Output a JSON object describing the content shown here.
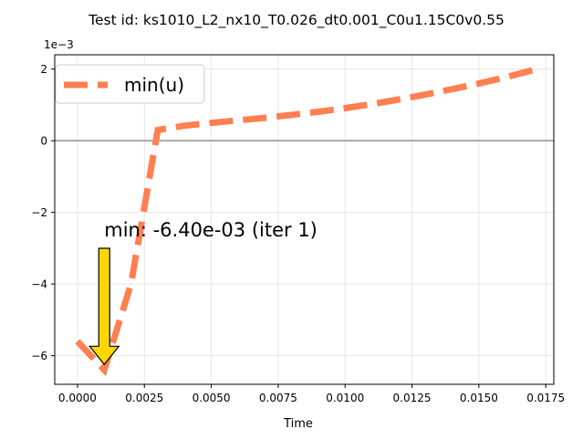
{
  "chart_data": {
    "type": "line",
    "title": "Test id:  ks1010_L2_nx10_T0.026_dt0.001_C0u1.15C0v0.55",
    "xlabel": "Time",
    "ylabel": "",
    "y_offset_label": "1e−3",
    "xlim": [
      -0.00085,
      0.0178
    ],
    "ylim": [
      -6.8,
      2.4
    ],
    "x_ticks": [
      0.0,
      0.0025,
      0.005,
      0.0075,
      0.01,
      0.0125,
      0.015,
      0.0175
    ],
    "x_tick_labels": [
      "0.0000",
      "0.0025",
      "0.0050",
      "0.0075",
      "0.0100",
      "0.0125",
      "0.0150",
      "0.0175"
    ],
    "y_ticks": [
      -6,
      -4,
      -2,
      0,
      2
    ],
    "y_tick_labels": [
      "−6",
      "−4",
      "−2",
      "0",
      "2"
    ],
    "grid": true,
    "legend_position": "top-left",
    "series": [
      {
        "name": "min(u)",
        "color": "#ff7f50",
        "style": "dashed",
        "x": [
          0.0,
          0.001,
          0.002,
          0.003,
          0.004,
          0.005,
          0.006,
          0.007,
          0.008,
          0.009,
          0.01,
          0.011,
          0.012,
          0.013,
          0.014,
          0.015,
          0.016,
          0.017
        ],
        "y": [
          -5.6,
          -6.4,
          -4.0,
          0.3,
          0.42,
          0.5,
          0.57,
          0.64,
          0.72,
          0.81,
          0.91,
          1.02,
          1.15,
          1.29,
          1.44,
          1.6,
          1.77,
          1.97
        ]
      }
    ],
    "reference_line": {
      "y": 0,
      "color": "#aaaaaa"
    },
    "annotation": {
      "text": "min: -6.40e-03 (iter 1)",
      "x": 0.001,
      "y": -6.4,
      "arrow_color": "#ffd700"
    }
  }
}
